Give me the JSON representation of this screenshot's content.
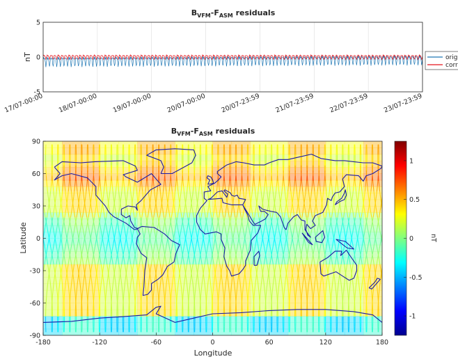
{
  "chart_data": [
    {
      "type": "line",
      "title": {
        "main": "B",
        "sub1": "VFM",
        "mid": "-F",
        "sub2": "ASM",
        "tail": " residuals"
      },
      "ylabel": "nT",
      "xlabel": "",
      "ylim": [
        -5,
        5
      ],
      "yticks": [
        "5",
        "0",
        "-5"
      ],
      "x_tick_labels": [
        "17/07-00:00",
        "18/07-00:00",
        "19/07-00:00",
        "20/07-00:00",
        "20/07-23:59",
        "21/07-23:59",
        "22/07-23:59",
        "23/07-23:59"
      ],
      "xlim_days": [
        0,
        7
      ],
      "grid": true,
      "legend": "right",
      "series": [
        {
          "name": "orig",
          "color": "#1f77b4",
          "mean": -0.55,
          "trend": 0.25,
          "amplitude": 0.75,
          "orbits_per_day": 15
        },
        {
          "name": "corr",
          "color": "#e5131a",
          "mean": 0.05,
          "trend": 0.0,
          "amplitude": 0.35,
          "orbits_per_day": 15
        }
      ]
    },
    {
      "type": "heatmap",
      "title": {
        "main": "B",
        "sub1": "VFM",
        "mid": "-F",
        "sub2": "ASM",
        "tail": " residuals"
      },
      "xlabel": "Longitude",
      "ylabel": "Latitude",
      "xlim": [
        -180,
        180
      ],
      "ylim": [
        -90,
        90
      ],
      "xticks": [
        -180,
        -120,
        -60,
        0,
        60,
        120,
        180
      ],
      "yticks": [
        90,
        60,
        30,
        0,
        -30,
        -60,
        -90
      ],
      "colorbar": {
        "label": "nT",
        "min": -1.25,
        "max": 1.25,
        "ticks": [
          "1",
          "0.5",
          "0",
          "-0.5",
          "-1"
        ],
        "colormap": "jet"
      },
      "coastline_color": "#1a1aa6",
      "value_summary": {
        "mid_latitudes_green_yellow": 0.3,
        "northern_band_orange": 0.6,
        "equatorial_cyan": -0.2,
        "south_polar_cyan": -0.3
      }
    }
  ]
}
